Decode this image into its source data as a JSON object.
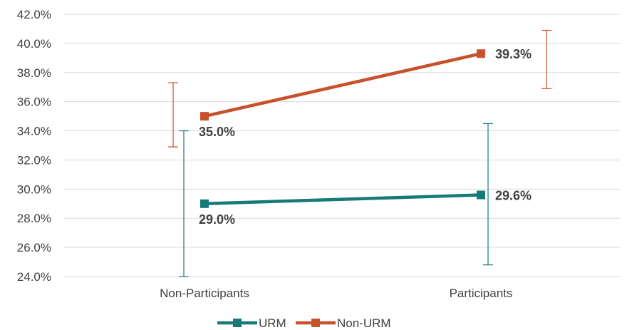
{
  "chart_data": {
    "type": "line",
    "categories": [
      "Non-Participants",
      "Participants"
    ],
    "series": [
      {
        "name": "URM",
        "values": [
          29.0,
          29.6
        ],
        "labels": [
          "29.0%",
          "29.6%"
        ],
        "error_low": [
          24.0,
          24.8
        ],
        "error_high": [
          34.0,
          34.5
        ],
        "color": "#167A78"
      },
      {
        "name": "Non-URM",
        "values": [
          35.0,
          39.3
        ],
        "labels": [
          "35.0%",
          "39.3%"
        ],
        "error_low": [
          32.9,
          36.9
        ],
        "error_high": [
          37.3,
          40.9
        ],
        "color": "#C8512B"
      }
    ],
    "ylim": [
      24.0,
      42.0
    ],
    "yticks": [
      "24.0%",
      "26.0%",
      "28.0%",
      "30.0%",
      "32.0%",
      "34.0%",
      "36.0%",
      "38.0%",
      "40.0%",
      "42.0%"
    ],
    "ytick_values": [
      24,
      26,
      28,
      30,
      32,
      34,
      36,
      38,
      40,
      42
    ],
    "grid": true,
    "legend_position": "bottom",
    "gridline_color": "#D9D9D9",
    "text_color": "#404040"
  }
}
